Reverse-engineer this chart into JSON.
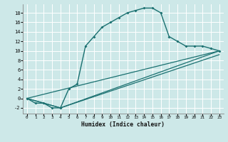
{
  "xlabel": "Humidex (Indice chaleur)",
  "bg_color": "#cde8e8",
  "grid_color": "#ffffff",
  "line_color": "#1a7070",
  "xlim": [
    -0.5,
    23.5
  ],
  "ylim": [
    -3.2,
    19.8
  ],
  "xticks": [
    0,
    1,
    2,
    3,
    4,
    5,
    6,
    7,
    8,
    9,
    10,
    11,
    12,
    13,
    14,
    15,
    16,
    17,
    18,
    19,
    20,
    21,
    22,
    23
  ],
  "yticks": [
    -2,
    0,
    2,
    4,
    6,
    8,
    10,
    12,
    14,
    16,
    18
  ],
  "line1_x": [
    0,
    1,
    2,
    3,
    4,
    5,
    6,
    7,
    8,
    9,
    10,
    11,
    12,
    13,
    14,
    15,
    16,
    17,
    18,
    19,
    20,
    21,
    22,
    23
  ],
  "line1_y": [
    0,
    -1,
    -1,
    -2,
    -2,
    2,
    3,
    11,
    13,
    15,
    16,
    17,
    18,
    18.5,
    19,
    19,
    18,
    13,
    12,
    11,
    11,
    11,
    10.5,
    10
  ],
  "line2_x": [
    0,
    23
  ],
  "line2_y": [
    0,
    10
  ],
  "line3_x": [
    0,
    4,
    23
  ],
  "line3_y": [
    0,
    -2,
    10
  ],
  "line4_x": [
    0,
    4,
    23
  ],
  "line4_y": [
    0,
    -2,
    9.2
  ]
}
